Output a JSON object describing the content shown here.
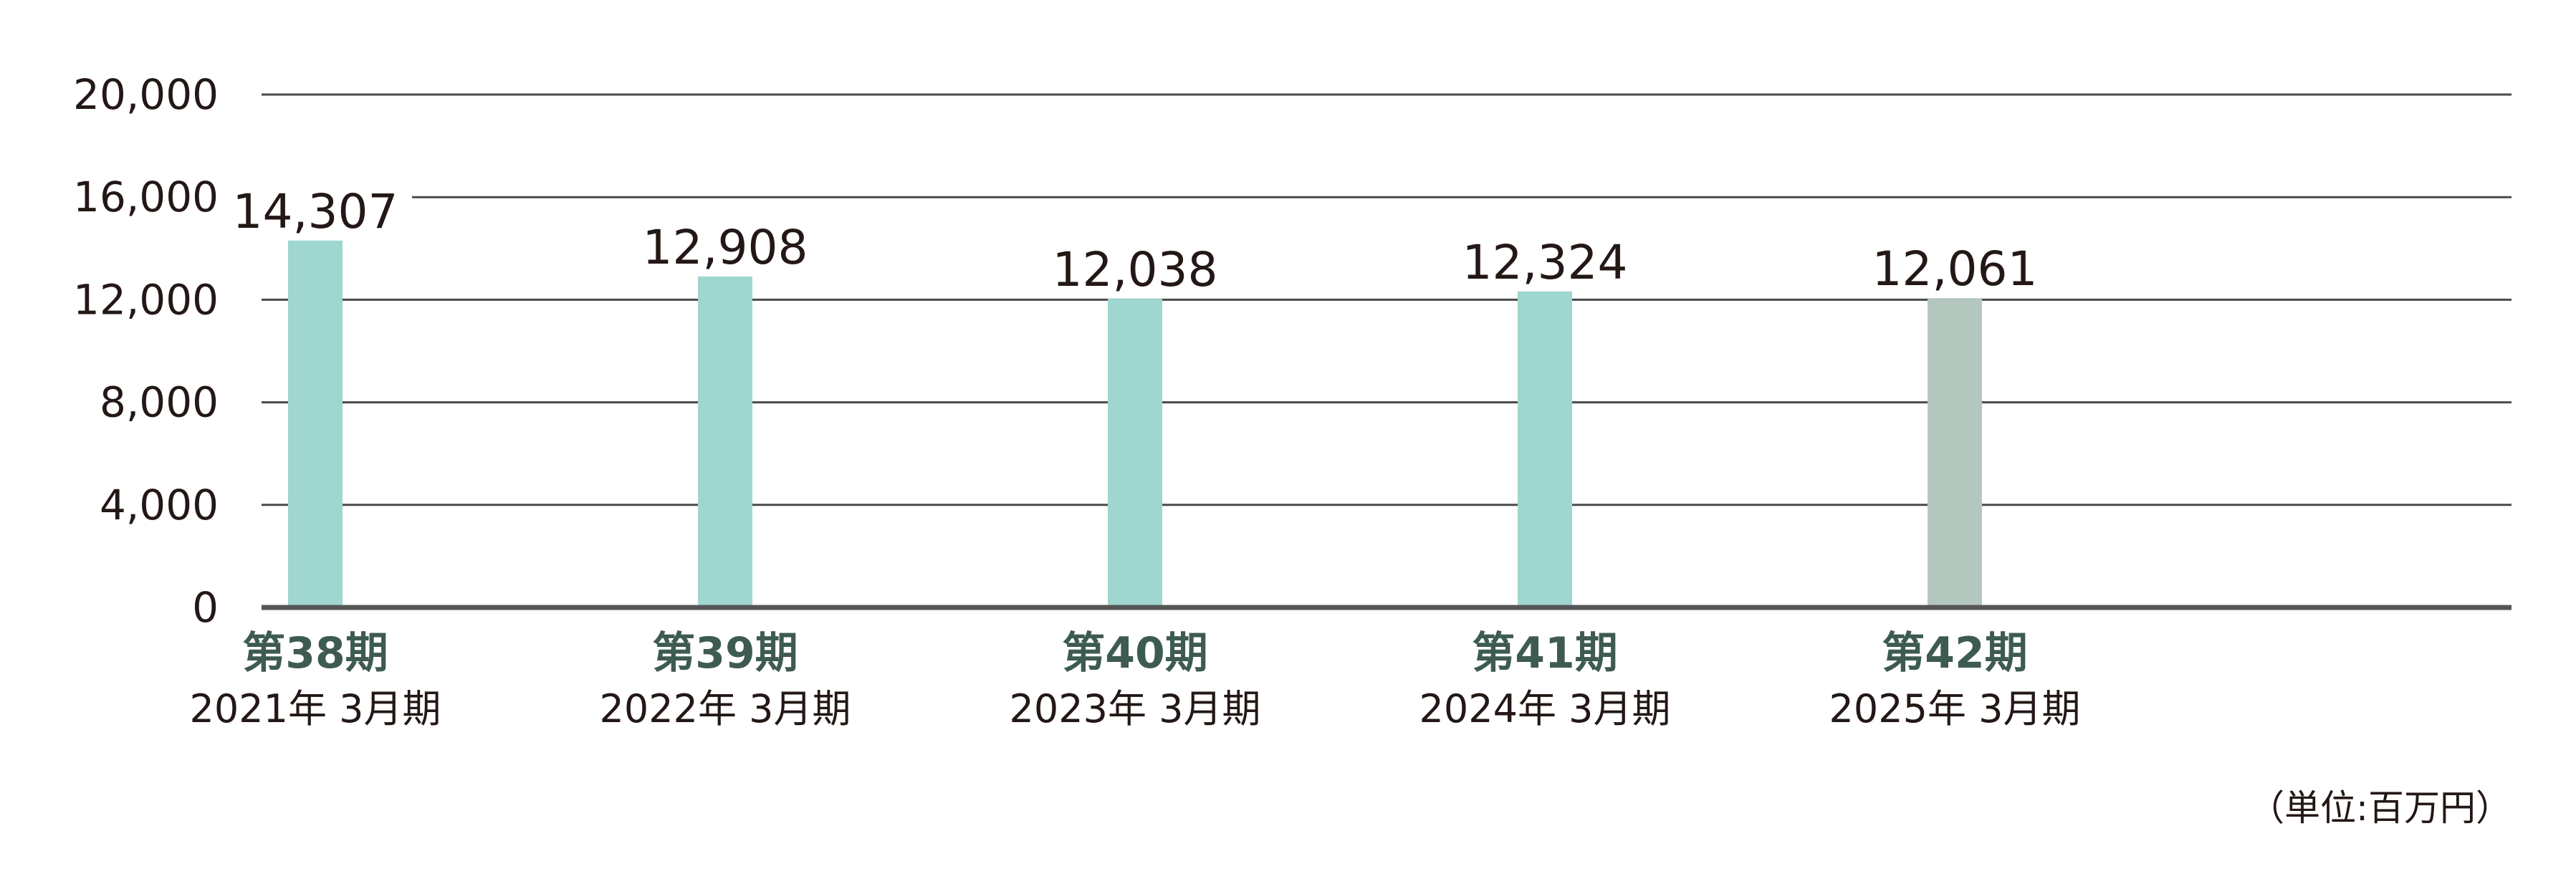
{
  "chart_data": {
    "type": "bar",
    "categories": [
      {
        "period": "第38期",
        "date": "2021年 3月期"
      },
      {
        "period": "第39期",
        "date": "2022年 3月期"
      },
      {
        "period": "第40期",
        "date": "2023年 3月期"
      },
      {
        "period": "第41期",
        "date": "2024年 3月期"
      },
      {
        "period": "第42期",
        "date": "2025年 3月期"
      }
    ],
    "values": [
      14307,
      12908,
      12038,
      12324,
      12061
    ],
    "value_labels": [
      "14,307",
      "12,908",
      "12,038",
      "12,324",
      "12,061"
    ],
    "ylim": [
      0,
      20000
    ],
    "yticks": [
      0,
      4000,
      8000,
      12000,
      16000,
      20000
    ],
    "ytick_labels": [
      "0",
      "4,000",
      "8,000",
      "12,000",
      "16,000",
      "20,000"
    ],
    "unit": "（単位:百万円）",
    "grid": true,
    "legend": "none",
    "colors": {
      "bar": "#9fd6cf",
      "bar_latest": "#b4c7bf",
      "grid": "#4a4a4a",
      "axis": "#555555",
      "period_text": "#3e5b4f",
      "text": "#231815"
    }
  }
}
